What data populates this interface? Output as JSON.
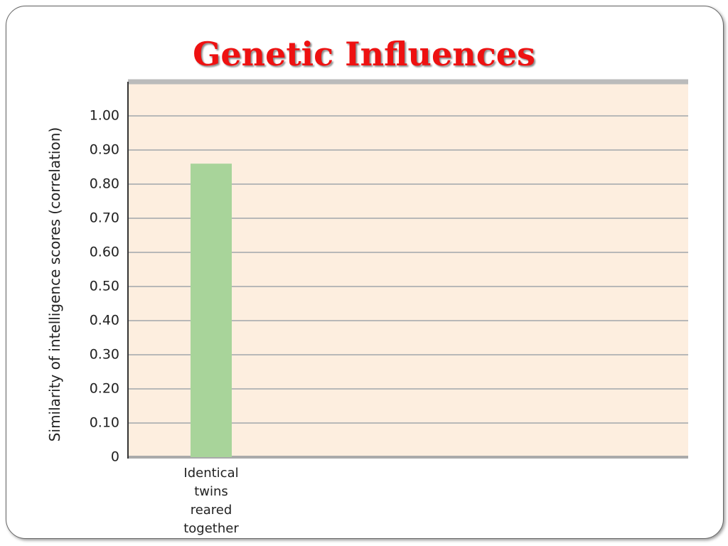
{
  "chart_data": {
    "type": "bar",
    "title": "Genetic Influences",
    "y_label": "Similarity of intelligence scores (correlation)",
    "categories": [
      "Identical twins reared together"
    ],
    "values": [
      0.86
    ],
    "color": "#a8d49a",
    "ylim": [
      0,
      1.1
    ],
    "yticks": [
      0,
      {
        "value": 0.1,
        "label": "0.10"
      },
      {
        "value": 0.2,
        "label": "0.20"
      },
      {
        "value": 0.3,
        "label": "0.30"
      },
      {
        "value": 0.4,
        "label": "0.40"
      },
      {
        "value": 0.5,
        "label": "0.50"
      },
      {
        "value": 0.6,
        "label": "0.60"
      },
      {
        "value": 0.7,
        "label": "0.70"
      },
      {
        "value": 0.8,
        "label": "0.80"
      },
      {
        "value": 0.9,
        "label": "0.90"
      },
      {
        "value": 1,
        "label": "1.00"
      }
    ],
    "grid": true
  }
}
